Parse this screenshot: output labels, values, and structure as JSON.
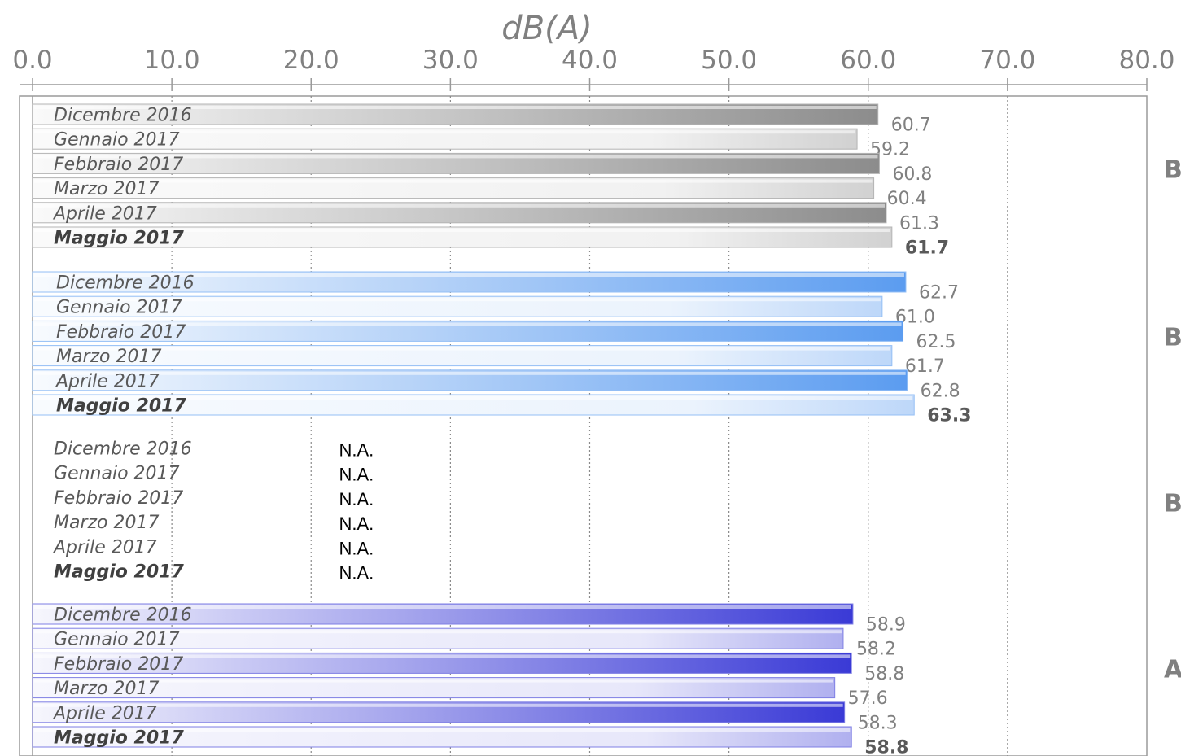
{
  "chart_data": {
    "type": "bar",
    "orientation": "horizontal",
    "title": "",
    "xlabel": "dB(A)",
    "ylabel": "",
    "xlim": [
      0,
      80
    ],
    "x_ticks": [
      "0.0",
      "10.0",
      "20.0",
      "30.0",
      "40.0",
      "50.0",
      "60.0",
      "70.0",
      "80.0"
    ],
    "grid": "vertical dotted",
    "groups": [
      {
        "label": "B",
        "color": "#8c8c8c",
        "bars": [
          {
            "category": "Dicembre 2016",
            "value": 60.7,
            "label": "60.7",
            "bold": false
          },
          {
            "category": "Gennaio 2017",
            "value": 59.2,
            "label": "59.2",
            "bold": false
          },
          {
            "category": "Febbraio 2017",
            "value": 60.8,
            "label": "60.8",
            "bold": false
          },
          {
            "category": "Marzo 2017",
            "value": 60.4,
            "label": "60.4",
            "bold": false
          },
          {
            "category": "Aprile 2017",
            "value": 61.3,
            "label": "61.3",
            "bold": false
          },
          {
            "category": "Maggio 2017",
            "value": 61.7,
            "label": "61.7",
            "bold": true
          }
        ]
      },
      {
        "label": "B",
        "color": "#5b9cf0",
        "bars": [
          {
            "category": "Dicembre 2016",
            "value": 62.7,
            "label": "62.7",
            "bold": false
          },
          {
            "category": "Gennaio 2017",
            "value": 61.0,
            "label": "61.0",
            "bold": false
          },
          {
            "category": "Febbraio 2017",
            "value": 62.5,
            "label": "62.5",
            "bold": false
          },
          {
            "category": "Marzo 2017",
            "value": 61.7,
            "label": "61.7",
            "bold": false
          },
          {
            "category": "Aprile 2017",
            "value": 62.8,
            "label": "62.8",
            "bold": false
          },
          {
            "category": "Maggio 2017",
            "value": 63.3,
            "label": "63.3",
            "bold": true
          }
        ]
      },
      {
        "label": "B",
        "color": "#999999",
        "bars": [
          {
            "category": "Dicembre 2016",
            "value": null,
            "label": "N.A.",
            "bold": false
          },
          {
            "category": "Gennaio 2017",
            "value": null,
            "label": "N.A.",
            "bold": false
          },
          {
            "category": "Febbraio 2017",
            "value": null,
            "label": "N.A.",
            "bold": false
          },
          {
            "category": "Marzo 2017",
            "value": null,
            "label": "N.A.",
            "bold": false
          },
          {
            "category": "Aprile 2017",
            "value": null,
            "label": "N.A.",
            "bold": false
          },
          {
            "category": "Maggio 2017",
            "value": null,
            "label": "N.A.",
            "bold": true
          }
        ]
      },
      {
        "label": "A",
        "color": "#3a3ad6",
        "bars": [
          {
            "category": "Dicembre 2016",
            "value": 58.9,
            "label": "58.9",
            "bold": false
          },
          {
            "category": "Gennaio 2017",
            "value": 58.2,
            "label": "58.2",
            "bold": false
          },
          {
            "category": "Febbraio 2017",
            "value": 58.8,
            "label": "58.8",
            "bold": false
          },
          {
            "category": "Marzo 2017",
            "value": 57.6,
            "label": "57.6",
            "bold": false
          },
          {
            "category": "Aprile 2017",
            "value": 58.3,
            "label": "58.3",
            "bold": false
          },
          {
            "category": "Maggio 2017",
            "value": 58.8,
            "label": "58.8",
            "bold": true
          }
        ]
      }
    ]
  }
}
